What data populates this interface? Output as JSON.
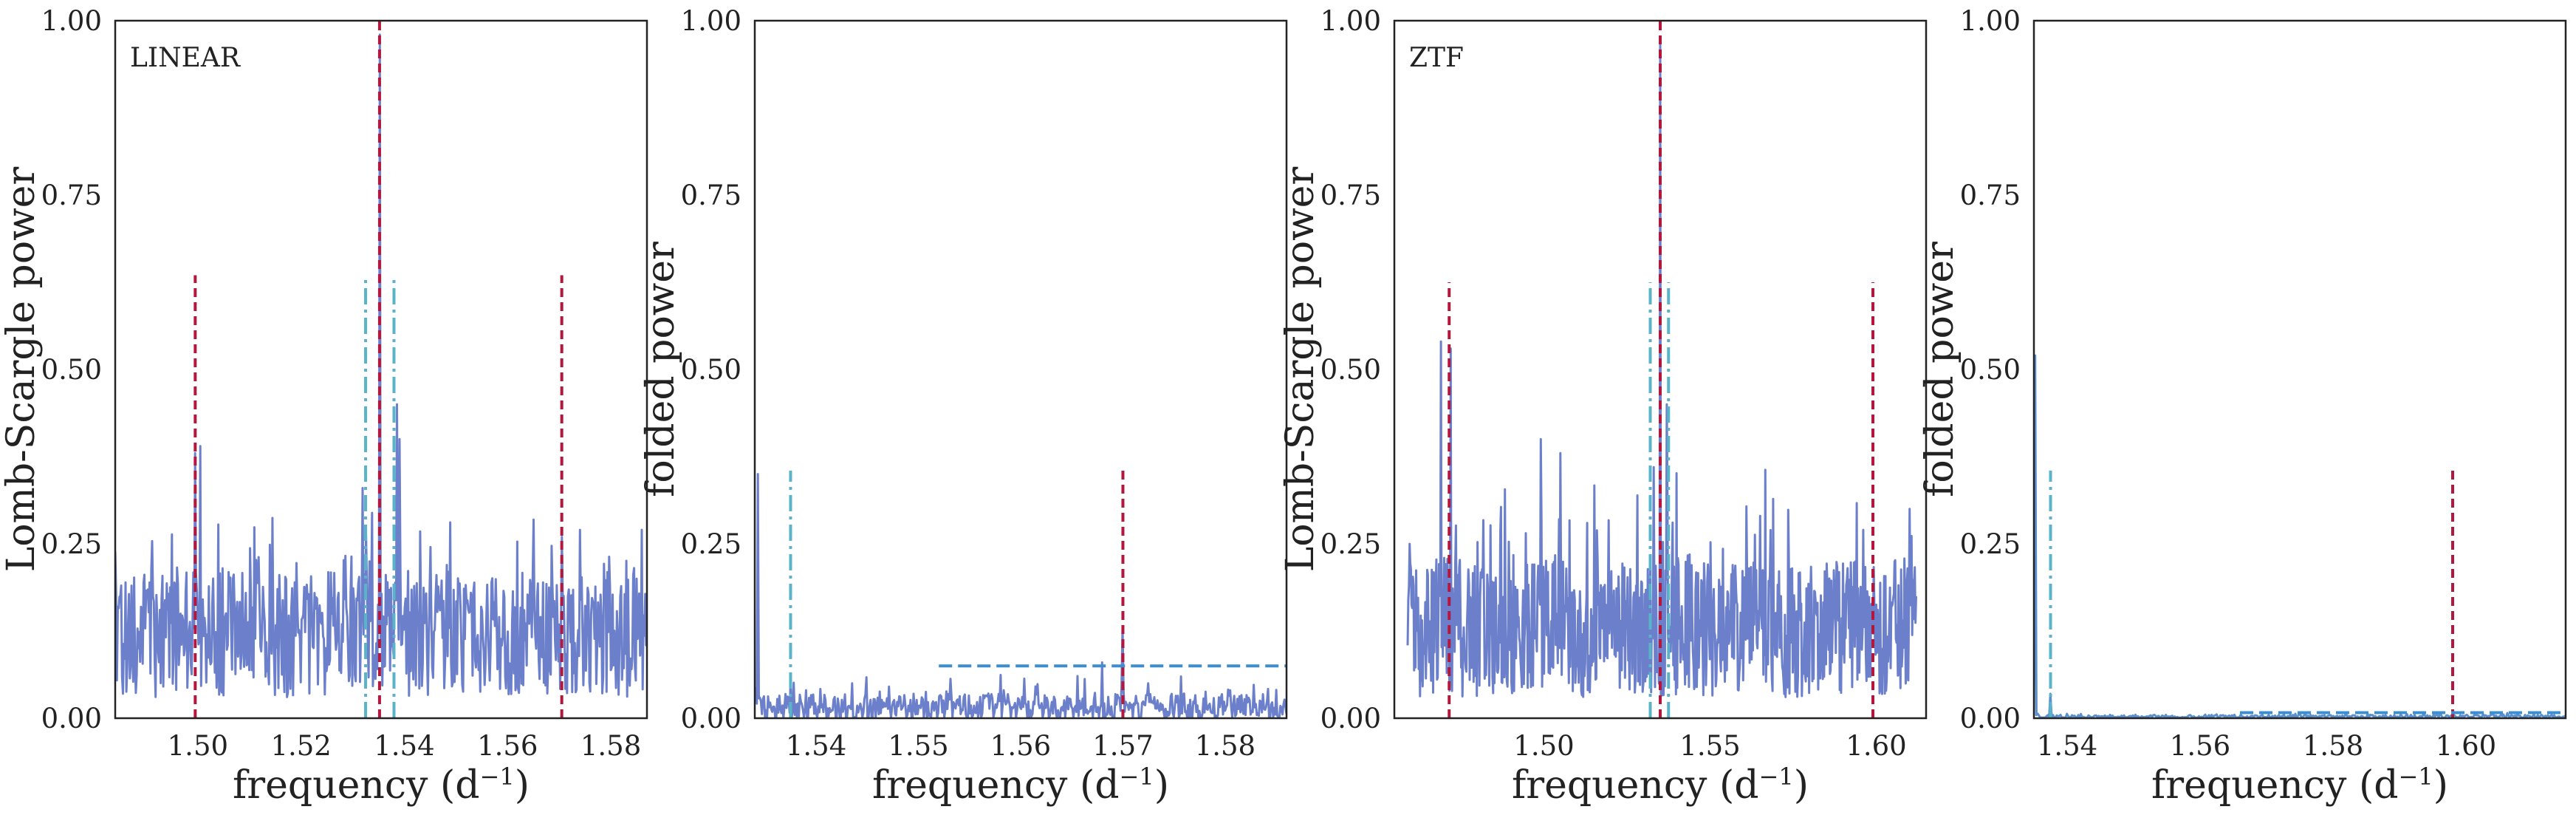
{
  "chart_data": [
    {
      "type": "line",
      "label": "LINEAR",
      "xlabel": "frequency (d⁻¹)",
      "ylabel": "Lomb-Scargle power",
      "xlim": [
        1.484,
        1.587
      ],
      "ylim": [
        0,
        1
      ],
      "xticks": [
        1.5,
        1.52,
        1.54,
        1.56,
        1.58
      ],
      "xtick_labels": [
        "1.50",
        "1.52",
        "1.54",
        "1.56",
        "1.58"
      ],
      "yticks": [
        0,
        0.25,
        0.5,
        0.75,
        1.0
      ],
      "ytick_labels": [
        "0.00",
        "0.25",
        "0.50",
        "0.75",
        "1.00"
      ],
      "grid": false,
      "series": [
        {
          "kind": "periodogram",
          "color": "#6b7fcb",
          "x_range": [
            1.484,
            1.587
          ],
          "baseline": 0.12,
          "noise": 0.09,
          "points": 620,
          "peaks": [
            {
              "x": 1.4995,
              "y": 0.38
            },
            {
              "x": 1.5005,
              "y": 0.39
            },
            {
              "x": 1.5352,
              "y": 0.98
            },
            {
              "x": 1.5385,
              "y": 0.45
            },
            {
              "x": 1.539,
              "y": 0.4
            },
            {
              "x": 1.532,
              "y": 0.33
            },
            {
              "x": 1.5705,
              "y": 0.26
            },
            {
              "x": 1.574,
              "y": 0.27
            },
            {
              "x": 1.586,
              "y": 0.27
            }
          ]
        }
      ],
      "vlines": [
        {
          "x": 1.4995,
          "ymax": 0.635,
          "color": "#b2183d",
          "style": "dashed"
        },
        {
          "x": 1.5352,
          "ymax": 1.0,
          "color": "#b2183d",
          "style": "dashed"
        },
        {
          "x": 1.5705,
          "ymax": 0.635,
          "color": "#b2183d",
          "style": "dashed"
        },
        {
          "x": 1.5325,
          "ymax": 0.635,
          "color": "#5ab4c9",
          "style": "dashdot"
        },
        {
          "x": 1.538,
          "ymax": 0.635,
          "color": "#5ab4c9",
          "style": "dashdot"
        }
      ],
      "hlines": []
    },
    {
      "type": "line",
      "label": "",
      "xlabel": "frequency (d⁻¹)",
      "ylabel": "folded power",
      "xlim": [
        1.534,
        1.586
      ],
      "ylim": [
        0,
        1
      ],
      "xticks": [
        1.54,
        1.55,
        1.56,
        1.57,
        1.58
      ],
      "xtick_labels": [
        "1.54",
        "1.55",
        "1.56",
        "1.57",
        "1.58"
      ],
      "yticks": [
        0,
        0.25,
        0.5,
        0.75,
        1.0
      ],
      "ytick_labels": [
        "0.00",
        "0.25",
        "0.50",
        "0.75",
        "1.00"
      ],
      "grid": false,
      "series": [
        {
          "kind": "periodogram",
          "color": "#6b7fcb",
          "x_range": [
            1.534,
            1.586
          ],
          "baseline": 0.015,
          "noise": 0.02,
          "points": 520,
          "peaks": [
            {
              "x": 1.5343,
              "y": 0.35
            },
            {
              "x": 1.5375,
              "y": 0.06
            },
            {
              "x": 1.5435,
              "y": 0.05
            },
            {
              "x": 1.568,
              "y": 0.08
            },
            {
              "x": 1.57,
              "y": 0.13
            },
            {
              "x": 1.5725,
              "y": 0.05
            },
            {
              "x": 1.5805,
              "y": 0.04
            }
          ]
        }
      ],
      "vlines": [
        {
          "x": 1.5375,
          "ymax": 0.355,
          "color": "#5ab4c9",
          "style": "dashdot"
        },
        {
          "x": 1.57,
          "ymax": 0.36,
          "color": "#b2183d",
          "style": "dashed"
        }
      ],
      "hlines": [
        {
          "y": 0.075,
          "xmin": 1.552,
          "xmax": 1.586,
          "color": "#3b8ed0",
          "style": "dashed"
        }
      ]
    },
    {
      "type": "line",
      "label": "ZTF",
      "xlabel": "frequency (d⁻¹)",
      "ylabel": "Lomb-Scargle power",
      "xlim": [
        1.455,
        1.615
      ],
      "ylim": [
        0,
        1
      ],
      "xticks": [
        1.5,
        1.55,
        1.6
      ],
      "xtick_labels": [
        "1.50",
        "1.55",
        "1.60"
      ],
      "yticks": [
        0,
        0.25,
        0.5,
        0.75,
        1.0
      ],
      "ytick_labels": [
        "0.00",
        "0.25",
        "0.50",
        "0.75",
        "1.00"
      ],
      "grid": false,
      "series": [
        {
          "kind": "periodogram",
          "color": "#6b7fcb",
          "x_range": [
            1.459,
            1.612
          ],
          "baseline": 0.13,
          "noise": 0.1,
          "points": 780,
          "peaks": [
            {
              "x": 1.469,
              "y": 0.54
            },
            {
              "x": 1.472,
              "y": 0.53
            },
            {
              "x": 1.499,
              "y": 0.4
            },
            {
              "x": 1.505,
              "y": 0.38
            },
            {
              "x": 1.535,
              "y": 0.97
            },
            {
              "x": 1.537,
              "y": 0.45
            },
            {
              "x": 1.533,
              "y": 0.36
            },
            {
              "x": 1.596,
              "y": 0.27
            },
            {
              "x": 1.61,
              "y": 0.3
            }
          ]
        }
      ],
      "vlines": [
        {
          "x": 1.4715,
          "ymax": 0.625,
          "color": "#b2183d",
          "style": "dashed"
        },
        {
          "x": 1.535,
          "ymax": 1.0,
          "color": "#b2183d",
          "style": "dashed"
        },
        {
          "x": 1.599,
          "ymax": 0.625,
          "color": "#b2183d",
          "style": "dashed"
        },
        {
          "x": 1.532,
          "ymax": 0.625,
          "color": "#5ab4c9",
          "style": "dashdot"
        },
        {
          "x": 1.5375,
          "ymax": 0.625,
          "color": "#5ab4c9",
          "style": "dashdot"
        }
      ],
      "hlines": []
    },
    {
      "type": "line",
      "label": "",
      "xlabel": "frequency (d⁻¹)",
      "ylabel": "folded power",
      "xlim": [
        1.535,
        1.615
      ],
      "ylim": [
        0,
        1
      ],
      "xticks": [
        1.54,
        1.56,
        1.58,
        1.6
      ],
      "xtick_labels": [
        "1.54",
        "1.56",
        "1.58",
        "1.60"
      ],
      "yticks": [
        0,
        0.25,
        0.5,
        0.75,
        1.0
      ],
      "ytick_labels": [
        "0.00",
        "0.25",
        "0.50",
        "0.75",
        "1.00"
      ],
      "grid": false,
      "series": [
        {
          "kind": "periodogram",
          "color": "#5a8fd0",
          "x_range": [
            1.535,
            1.615
          ],
          "baseline": 0.002,
          "noise": 0.003,
          "points": 420,
          "peaks": [
            {
              "x": 1.5352,
              "y": 0.52
            },
            {
              "x": 1.5375,
              "y": 0.035
            },
            {
              "x": 1.542,
              "y": 0.006
            }
          ]
        }
      ],
      "vlines": [
        {
          "x": 1.5375,
          "ymax": 0.355,
          "color": "#5ab4c9",
          "style": "dashdot"
        },
        {
          "x": 1.598,
          "ymax": 0.355,
          "color": "#b2183d",
          "style": "dashed"
        }
      ],
      "hlines": [
        {
          "y": 0.008,
          "xmin": 1.566,
          "xmax": 1.615,
          "color": "#3b8ed0",
          "style": "dashed"
        }
      ]
    }
  ]
}
